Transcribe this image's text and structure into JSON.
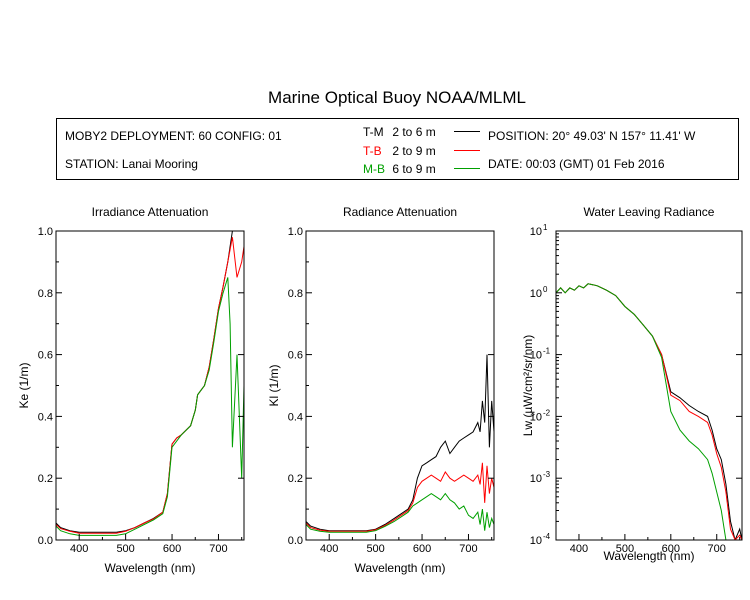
{
  "title": "Marine Optical Buoy NOAA/MLML",
  "info": {
    "deployment": "MOBY2 DEPLOYMENT: 60 CONFIG: 01",
    "station": "STATION: Lanai Mooring",
    "position": "POSITION: 20° 49.03' N   157° 11.41' W",
    "date": "DATE: 00:03 (GMT) 01 Feb 2016"
  },
  "legend": [
    {
      "name": "T-M",
      "range": "2 to 6  m",
      "color": "#000000"
    },
    {
      "name": "T-B",
      "range": "2 to 9  m",
      "color": "#ff0000"
    },
    {
      "name": "M-B",
      "range": "6 to 9  m",
      "color": "#00a000"
    }
  ],
  "chart_data": [
    {
      "type": "line",
      "title": "Irradiance Attenuation",
      "xlabel": "Wavelength (nm)",
      "ylabel": "Ke  (1/m)",
      "xlim": [
        350,
        755
      ],
      "ylim": [
        0,
        1
      ],
      "xticks": [
        400,
        500,
        600,
        700
      ],
      "yticks": [
        0.0,
        0.2,
        0.4,
        0.6,
        0.8,
        1.0
      ],
      "ytick_labels": [
        "0.0",
        "0.2",
        "0.4",
        "0.6",
        "0.8",
        "1.0"
      ],
      "series": [
        {
          "name": "T-M",
          "color": "#000000",
          "x": [
            350,
            360,
            380,
            400,
            420,
            440,
            460,
            480,
            500,
            520,
            540,
            560,
            580,
            590,
            600,
            610,
            620,
            640,
            650,
            655,
            660,
            670,
            680,
            690,
            700,
            710,
            720,
            725,
            730,
            740,
            750,
            755
          ],
          "y": [
            0.055,
            0.04,
            0.03,
            0.025,
            0.025,
            0.025,
            0.025,
            0.025,
            0.03,
            0.04,
            0.055,
            0.07,
            0.09,
            0.15,
            0.31,
            0.33,
            0.34,
            0.37,
            0.42,
            0.47,
            0.48,
            0.5,
            0.56,
            0.65,
            0.75,
            0.82,
            0.9,
            0.95,
            1.0,
            1.0,
            1.0,
            1.0
          ]
        },
        {
          "name": "T-B",
          "color": "#ff0000",
          "x": [
            350,
            360,
            380,
            400,
            420,
            440,
            460,
            480,
            500,
            520,
            540,
            560,
            580,
            590,
            600,
            610,
            620,
            640,
            650,
            655,
            660,
            670,
            680,
            690,
            700,
            710,
            720,
            725,
            730,
            740,
            750,
            755
          ],
          "y": [
            0.05,
            0.037,
            0.028,
            0.022,
            0.022,
            0.022,
            0.022,
            0.022,
            0.028,
            0.04,
            0.055,
            0.068,
            0.09,
            0.15,
            0.31,
            0.33,
            0.34,
            0.37,
            0.42,
            0.47,
            0.48,
            0.5,
            0.56,
            0.65,
            0.75,
            0.82,
            0.9,
            0.94,
            0.98,
            0.85,
            0.9,
            0.95
          ]
        },
        {
          "name": "M-B",
          "color": "#00a000",
          "x": [
            350,
            360,
            380,
            400,
            420,
            440,
            460,
            480,
            500,
            520,
            540,
            560,
            580,
            590,
            600,
            610,
            620,
            640,
            650,
            655,
            660,
            670,
            680,
            690,
            700,
            710,
            720,
            725,
            730,
            740,
            750,
            755
          ],
          "y": [
            0.045,
            0.03,
            0.02,
            0.015,
            0.015,
            0.015,
            0.015,
            0.015,
            0.02,
            0.035,
            0.05,
            0.065,
            0.085,
            0.14,
            0.3,
            0.32,
            0.34,
            0.37,
            0.42,
            0.47,
            0.48,
            0.5,
            0.55,
            0.64,
            0.74,
            0.8,
            0.85,
            0.7,
            0.3,
            0.6,
            0.2,
            0.5
          ]
        }
      ]
    },
    {
      "type": "line",
      "title": "Radiance Attenuation",
      "xlabel": "Wavelength (nm)",
      "ylabel": "Kl  (1/m)",
      "xlim": [
        350,
        755
      ],
      "ylim": [
        0,
        1
      ],
      "xticks": [
        400,
        500,
        600,
        700
      ],
      "yticks": [
        0.0,
        0.2,
        0.4,
        0.6,
        0.8,
        1.0
      ],
      "ytick_labels": [
        "0.0",
        "0.2",
        "0.4",
        "0.6",
        "0.8",
        "1.0"
      ],
      "series": [
        {
          "name": "T-M",
          "color": "#000000",
          "x": [
            350,
            360,
            380,
            400,
            420,
            440,
            460,
            480,
            500,
            520,
            540,
            560,
            570,
            580,
            590,
            600,
            610,
            620,
            630,
            640,
            650,
            660,
            670,
            680,
            690,
            700,
            710,
            720,
            725,
            730,
            735,
            740,
            745,
            750,
            755
          ],
          "y": [
            0.06,
            0.045,
            0.035,
            0.03,
            0.03,
            0.03,
            0.03,
            0.03,
            0.035,
            0.05,
            0.07,
            0.09,
            0.1,
            0.13,
            0.2,
            0.24,
            0.25,
            0.26,
            0.27,
            0.3,
            0.32,
            0.28,
            0.3,
            0.32,
            0.33,
            0.34,
            0.35,
            0.38,
            0.35,
            0.45,
            0.38,
            0.6,
            0.3,
            0.45,
            0.35
          ]
        },
        {
          "name": "T-B",
          "color": "#ff0000",
          "x": [
            350,
            360,
            380,
            400,
            420,
            440,
            460,
            480,
            500,
            520,
            540,
            560,
            570,
            580,
            590,
            600,
            610,
            620,
            630,
            640,
            650,
            660,
            670,
            680,
            690,
            700,
            710,
            720,
            725,
            730,
            735,
            740,
            745,
            750,
            755
          ],
          "y": [
            0.055,
            0.04,
            0.032,
            0.028,
            0.028,
            0.028,
            0.028,
            0.028,
            0.033,
            0.047,
            0.065,
            0.085,
            0.095,
            0.12,
            0.17,
            0.19,
            0.2,
            0.21,
            0.2,
            0.19,
            0.22,
            0.2,
            0.19,
            0.2,
            0.21,
            0.2,
            0.19,
            0.21,
            0.18,
            0.25,
            0.12,
            0.24,
            0.15,
            0.2,
            0.17
          ]
        },
        {
          "name": "M-B",
          "color": "#00a000",
          "x": [
            350,
            360,
            380,
            400,
            420,
            440,
            460,
            480,
            500,
            520,
            540,
            560,
            570,
            580,
            590,
            600,
            610,
            620,
            630,
            640,
            650,
            660,
            670,
            680,
            690,
            700,
            710,
            720,
            725,
            730,
            735,
            740,
            745,
            750,
            755
          ],
          "y": [
            0.05,
            0.035,
            0.028,
            0.025,
            0.025,
            0.025,
            0.025,
            0.025,
            0.03,
            0.044,
            0.06,
            0.08,
            0.09,
            0.11,
            0.12,
            0.13,
            0.14,
            0.15,
            0.14,
            0.13,
            0.15,
            0.13,
            0.12,
            0.1,
            0.11,
            0.08,
            0.07,
            0.09,
            0.05,
            0.1,
            0.03,
            0.09,
            0.04,
            0.07,
            0.05
          ]
        }
      ]
    },
    {
      "type": "line",
      "title": "Water Leaving Radiance",
      "xlabel": "Wavelength (nm)",
      "ylabel": "Lw  (µW/cm²/sr/nm)",
      "scale": "log",
      "xlim": [
        350,
        755
      ],
      "ylim": [
        0.0001,
        10
      ],
      "xticks": [
        400,
        500,
        600,
        700
      ],
      "yticks": [
        0.0001,
        0.001,
        0.01,
        0.1,
        1,
        10
      ],
      "ytick_labels": [
        {
          "base": "10",
          "exp": "-4"
        },
        {
          "base": "10",
          "exp": "-3"
        },
        {
          "base": "10",
          "exp": "-2"
        },
        {
          "base": "10",
          "exp": "-1"
        },
        {
          "base": "10",
          "exp": "0"
        },
        {
          "base": "10",
          "exp": "1"
        }
      ],
      "series": [
        {
          "name": "T-M",
          "color": "#000000",
          "x": [
            350,
            360,
            370,
            380,
            390,
            400,
            410,
            420,
            430,
            440,
            460,
            480,
            500,
            520,
            540,
            560,
            580,
            600,
            620,
            640,
            660,
            680,
            690,
            700,
            710,
            720,
            730,
            740,
            750,
            755
          ],
          "y": [
            1.0,
            1.2,
            1.0,
            1.2,
            1.1,
            1.3,
            1.2,
            1.4,
            1.35,
            1.3,
            1.1,
            0.9,
            0.6,
            0.45,
            0.3,
            0.2,
            0.1,
            0.025,
            0.02,
            0.015,
            0.012,
            0.01,
            0.006,
            0.003,
            0.002,
            0.0008,
            0.0002,
            0.0001,
            0.00015,
            0.0001
          ]
        },
        {
          "name": "T-B",
          "color": "#ff0000",
          "x": [
            350,
            360,
            370,
            380,
            390,
            400,
            410,
            420,
            430,
            440,
            460,
            480,
            500,
            520,
            540,
            560,
            580,
            600,
            620,
            640,
            660,
            680,
            690,
            700,
            710,
            720,
            730,
            740,
            750,
            755
          ],
          "y": [
            1.0,
            1.2,
            1.0,
            1.2,
            1.1,
            1.3,
            1.2,
            1.4,
            1.35,
            1.3,
            1.1,
            0.9,
            0.6,
            0.45,
            0.3,
            0.2,
            0.1,
            0.022,
            0.018,
            0.012,
            0.01,
            0.008,
            0.005,
            0.0025,
            0.0015,
            0.0006,
            0.00015,
            0.0001,
            0.00012,
            0.0001
          ]
        },
        {
          "name": "M-B",
          "color": "#00a000",
          "x": [
            350,
            360,
            370,
            380,
            390,
            400,
            410,
            420,
            430,
            440,
            460,
            480,
            500,
            520,
            540,
            560,
            580,
            600,
            620,
            640,
            660,
            680,
            690,
            700,
            710,
            720,
            730,
            740,
            750,
            755
          ],
          "y": [
            1.0,
            1.2,
            1.0,
            1.2,
            1.1,
            1.3,
            1.2,
            1.4,
            1.35,
            1.3,
            1.1,
            0.9,
            0.6,
            0.45,
            0.3,
            0.2,
            0.09,
            0.012,
            0.006,
            0.004,
            0.003,
            0.002,
            0.0012,
            0.0006,
            0.0003,
            0.0001,
            0.0001,
            0.0001,
            0.0001,
            0.0001
          ]
        }
      ]
    }
  ]
}
